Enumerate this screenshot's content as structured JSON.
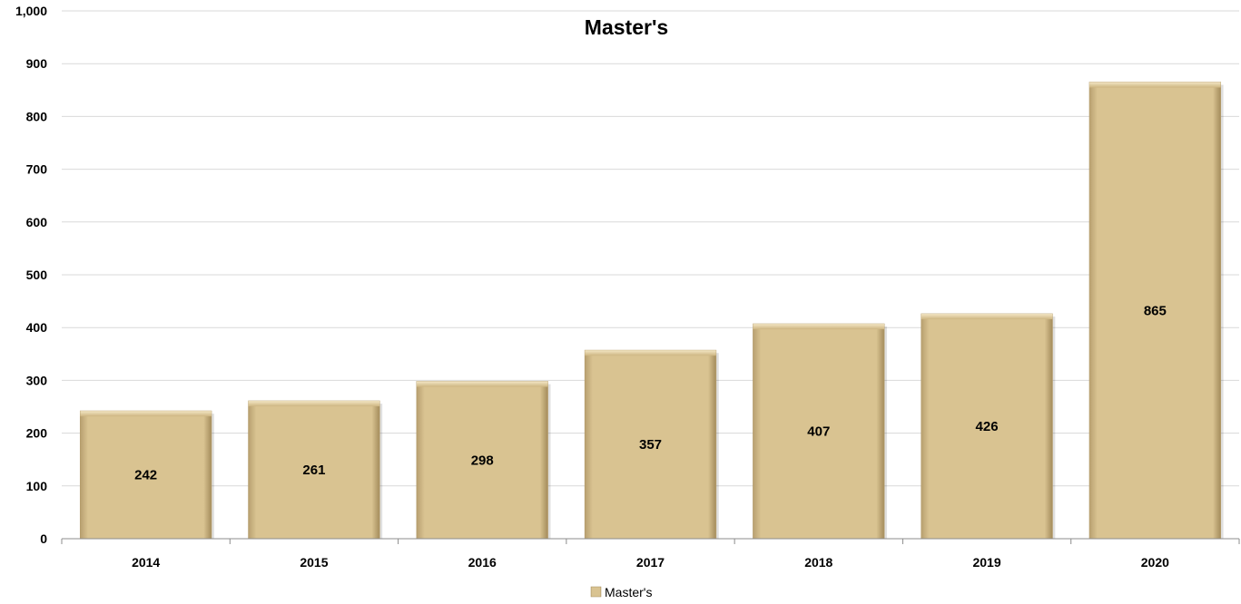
{
  "chart_data": {
    "type": "bar",
    "title": "Master's",
    "xlabel": "",
    "ylabel": "",
    "categories": [
      "2014",
      "2015",
      "2016",
      "2017",
      "2018",
      "2019",
      "2020"
    ],
    "series": [
      {
        "name": "Master's",
        "values": [
          242,
          261,
          298,
          357,
          407,
          426,
          865
        ]
      }
    ],
    "ylim": [
      0,
      1000
    ],
    "y_ticks": [
      "0",
      "100",
      "200",
      "300",
      "400",
      "500",
      "600",
      "700",
      "800",
      "900",
      "1,000"
    ],
    "grid": true,
    "legend_position": "bottom",
    "bar_color": "#d9c391",
    "data_labels": [
      "242",
      "261",
      "298",
      "357",
      "407",
      "426",
      "865"
    ]
  }
}
